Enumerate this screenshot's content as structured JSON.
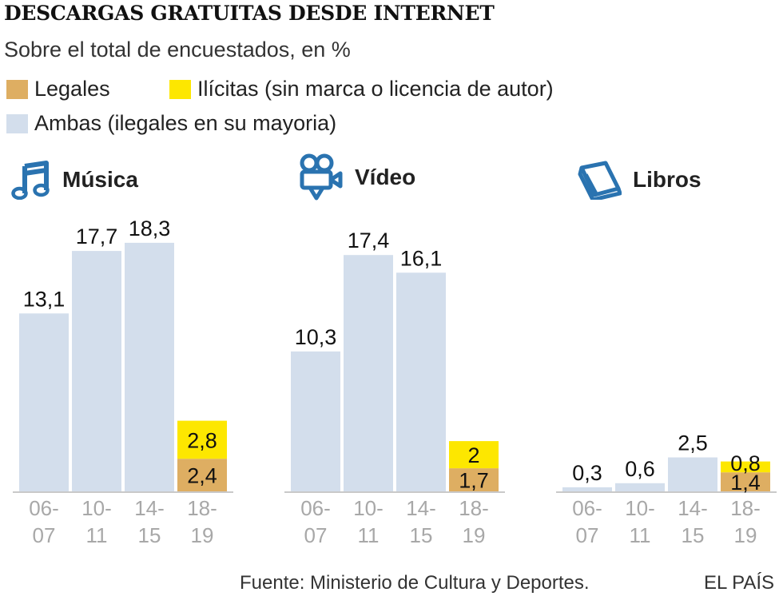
{
  "title": "DESCARGAS GRATUITAS DESDE INTERNET",
  "subtitle": "Sobre el total de encuestados, en %",
  "legend": {
    "legales": "Legales",
    "ilicitas": "Ilícitas (sin marca o licencia de autor)",
    "ambas": "Ambas (ilegales en su mayoria)"
  },
  "colors": {
    "legales": "#deae62",
    "ilicitas": "#fde700",
    "ambas": "#d3deec",
    "axis": "#c9c9c9",
    "tick_text": "#a8a8a8",
    "icon": "#2a73b0"
  },
  "source": "Fuente: Ministerio de Cultura y Deportes.",
  "brand": "EL PAÍS",
  "chart_data": {
    "type": "bar",
    "stacked": true,
    "unit": "%",
    "categories": [
      "06-07",
      "10-11",
      "14-15",
      "18-19"
    ],
    "panels": [
      {
        "name": "Música",
        "icon": "music-note-icon",
        "segments": [
          [
            {
              "series": "ambas",
              "value": 13.1,
              "label": "13,1"
            }
          ],
          [
            {
              "series": "ambas",
              "value": 17.7,
              "label": "17,7"
            }
          ],
          [
            {
              "series": "ambas",
              "value": 18.3,
              "label": "18,3"
            }
          ],
          [
            {
              "series": "legales",
              "value": 2.4,
              "label": "2,4"
            },
            {
              "series": "ilicitas",
              "value": 2.8,
              "label": "2,8"
            }
          ]
        ]
      },
      {
        "name": "Vídeo",
        "icon": "movie-camera-icon",
        "segments": [
          [
            {
              "series": "ambas",
              "value": 10.3,
              "label": "10,3"
            }
          ],
          [
            {
              "series": "ambas",
              "value": 17.4,
              "label": "17,4"
            }
          ],
          [
            {
              "series": "ambas",
              "value": 16.1,
              "label": "16,1"
            }
          ],
          [
            {
              "series": "legales",
              "value": 1.7,
              "label": "1,7"
            },
            {
              "series": "ilicitas",
              "value": 2,
              "label": "2"
            }
          ]
        ]
      },
      {
        "name": "Libros",
        "icon": "book-icon",
        "segments": [
          [
            {
              "series": "ambas",
              "value": 0.3,
              "label": "0,3"
            }
          ],
          [
            {
              "series": "ambas",
              "value": 0.6,
              "label": "0,6"
            }
          ],
          [
            {
              "series": "ambas",
              "value": 2.5,
              "label": "2,5"
            }
          ],
          [
            {
              "series": "legales",
              "value": 1.4,
              "label": "1,4"
            },
            {
              "series": "ilicitas",
              "value": 0.8,
              "label": "0,8"
            }
          ]
        ]
      }
    ]
  }
}
